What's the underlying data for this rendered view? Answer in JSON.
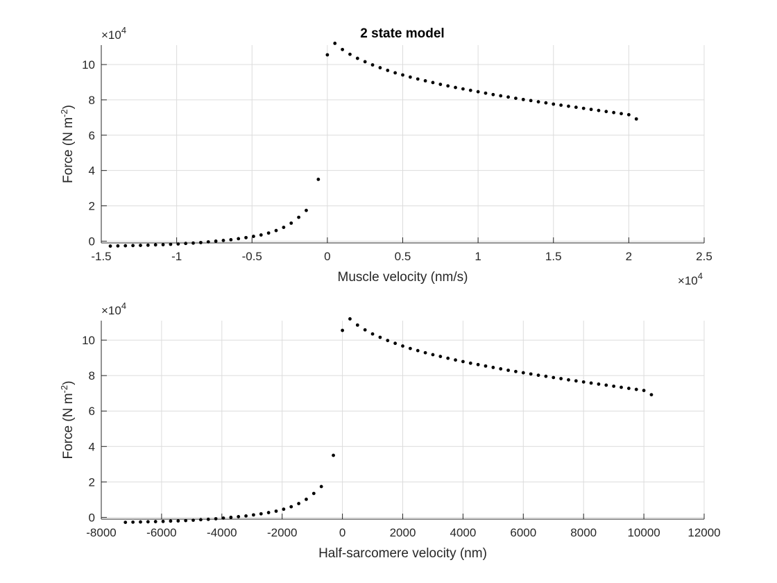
{
  "figure": {
    "title": "2 state model"
  },
  "chart_data": [
    {
      "type": "scatter",
      "title": "2 state model",
      "xlabel": "Muscle velocity (nm/s)",
      "ylabel": "Force (N m^-2)",
      "xlim": [
        -15000,
        25000
      ],
      "ylim": [
        -1000,
        111000
      ],
      "x_exponent_label": "×10",
      "x_exponent": "4",
      "y_exponent_label": "×10",
      "y_exponent": "4",
      "xticks": [
        -15000,
        -10000,
        -5000,
        0,
        5000,
        10000,
        15000,
        20000,
        25000
      ],
      "xticklabels": [
        "-1.5",
        "-1",
        "-0.5",
        "0",
        "0.5",
        "1",
        "1.5",
        "2",
        "2.5"
      ],
      "yticks": [
        0,
        20000,
        40000,
        60000,
        80000,
        100000
      ],
      "yticklabels": [
        "0",
        "2",
        "4",
        "6",
        "8",
        "10"
      ],
      "grid": true,
      "marker_color": "#000000",
      "series": [
        {
          "x": [
            -14400,
            -13900,
            -13400,
            -12900,
            -12400,
            -11900,
            -11400,
            -10900,
            -10400,
            -9900,
            -9400,
            -8900,
            -8400,
            -7900,
            -7400,
            -6900,
            -6400,
            -5900,
            -5400,
            -4900,
            -4400,
            -3900,
            -3400,
            -2900,
            -2400,
            -1900,
            -1400,
            -600,
            0,
            500,
            1000,
            1500,
            2000,
            2500,
            3000,
            3500,
            4000,
            4500,
            5000,
            5500,
            6000,
            6500,
            7000,
            7500,
            8000,
            8500,
            9000,
            9500,
            10000,
            10500,
            11000,
            11500,
            12000,
            12500,
            13000,
            13500,
            14000,
            14500,
            15000,
            15500,
            16000,
            16500,
            17000,
            17500,
            18000,
            18500,
            19000,
            19500,
            20000,
            20500
          ],
          "y": [
            -2800,
            -2700,
            -2600,
            -2500,
            -2400,
            -2300,
            -2100,
            -2000,
            -1800,
            -1600,
            -1300,
            -1100,
            -800,
            -400,
            0,
            400,
            800,
            1400,
            2000,
            2700,
            3500,
            4600,
            6000,
            7800,
            10200,
            13500,
            17400,
            35000,
            105500,
            112000,
            108500,
            105800,
            103500,
            101600,
            99800,
            98200,
            96700,
            95300,
            94100,
            92900,
            91800,
            90800,
            89800,
            88800,
            87900,
            87000,
            86200,
            85400,
            84600,
            83800,
            83000,
            82300,
            81600,
            80900,
            80200,
            79600,
            78900,
            78300,
            77600,
            77000,
            76400,
            75800,
            75200,
            74600,
            74000,
            73400,
            72800,
            72200,
            71600,
            69200
          ]
        }
      ]
    },
    {
      "type": "scatter",
      "title": "",
      "xlabel": "Half-sarcomere velocity (nm)",
      "ylabel": "Force (N m^-2)",
      "xlim": [
        -8000,
        12000
      ],
      "ylim": [
        -1000,
        111000
      ],
      "y_exponent_label": "×10",
      "y_exponent": "4",
      "xticks": [
        -8000,
        -6000,
        -4000,
        -2000,
        0,
        2000,
        4000,
        6000,
        8000,
        10000,
        12000
      ],
      "xticklabels": [
        "-8000",
        "-6000",
        "-4000",
        "-2000",
        "0",
        "2000",
        "4000",
        "6000",
        "8000",
        "10000",
        "12000"
      ],
      "yticks": [
        0,
        20000,
        40000,
        60000,
        80000,
        100000
      ],
      "yticklabels": [
        "0",
        "2",
        "4",
        "6",
        "8",
        "10"
      ],
      "grid": true,
      "marker_color": "#000000",
      "series": [
        {
          "x": [
            -7200,
            -6950,
            -6700,
            -6450,
            -6200,
            -5950,
            -5700,
            -5450,
            -5200,
            -4950,
            -4700,
            -4450,
            -4200,
            -3950,
            -3700,
            -3450,
            -3200,
            -2950,
            -2700,
            -2450,
            -2200,
            -1950,
            -1700,
            -1450,
            -1200,
            -950,
            -700,
            -300,
            0,
            250,
            500,
            750,
            1000,
            1250,
            1500,
            1750,
            2000,
            2250,
            2500,
            2750,
            3000,
            3250,
            3500,
            3750,
            4000,
            4250,
            4500,
            4750,
            5000,
            5250,
            5500,
            5750,
            6000,
            6250,
            6500,
            6750,
            7000,
            7250,
            7500,
            7750,
            8000,
            8250,
            8500,
            8750,
            9000,
            9250,
            9500,
            9750,
            10000,
            10250
          ],
          "y": [
            -2800,
            -2700,
            -2600,
            -2500,
            -2400,
            -2300,
            -2100,
            -2000,
            -1800,
            -1600,
            -1300,
            -1100,
            -800,
            -400,
            0,
            400,
            800,
            1400,
            2000,
            2700,
            3500,
            4600,
            6000,
            7800,
            10200,
            13500,
            17400,
            35000,
            105500,
            112000,
            108500,
            105800,
            103500,
            101600,
            99800,
            98200,
            96700,
            95300,
            94100,
            92900,
            91800,
            90800,
            89800,
            88800,
            87900,
            87000,
            86200,
            85400,
            84600,
            83800,
            83000,
            82300,
            81600,
            80900,
            80200,
            79600,
            78900,
            78300,
            77600,
            77000,
            76400,
            75800,
            75200,
            74600,
            74000,
            73400,
            72800,
            72200,
            71600,
            69200
          ]
        }
      ]
    }
  ]
}
